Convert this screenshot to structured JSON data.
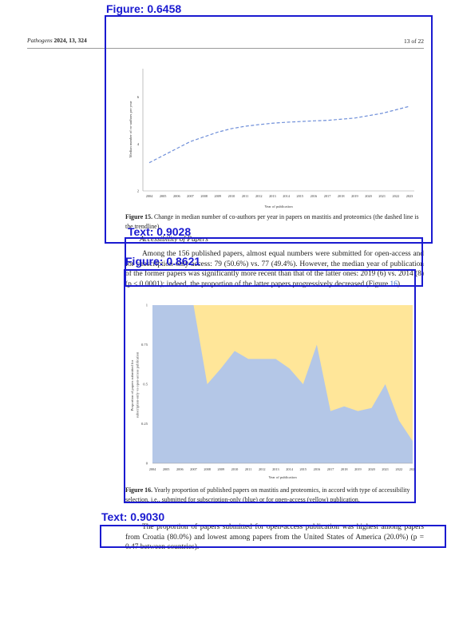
{
  "header": {
    "journal": "Pathogens",
    "citation": "2024, 13, 324",
    "page": "13 of 22"
  },
  "figure15": {
    "caption_label": "Figure 15.",
    "caption_text": "Change in median number of co-authors per year in papers on mastitis and proteomics (the dashed line is the trendline)."
  },
  "figure16": {
    "caption_label": "Figure 16.",
    "caption_text": "Yearly proportion of published papers on mastitis and proteomics, in accord with type of accessibility selection, i.e., submitted for subscription-only (blue) or for open-access (yellow) publication."
  },
  "section": {
    "heading": "Accessibility of Papers"
  },
  "paragraph1": {
    "text": "Among the 156 published papers, almost equal numbers were submitted for open-access and for subscription-only access: 79 (50.6%) vs. 77 (49.4%). However, the median year of publication of the former papers was significantly more recent than that of the latter ones: 2019 (6) vs. 2014 (8) (p < 0.0001); indeed, the proportion of the latter papers progressively decreased (Figure ",
    "ref": "16",
    "tail": ")."
  },
  "paragraph2": {
    "text": "The proportion of papers submitted for open-access publication was highest among papers from Croatia (80.0%) and lowest among papers from the United States of America (20.0%) (p = 0.47 between countries)."
  },
  "detections": [
    {
      "label": "Figure: 0.6458"
    },
    {
      "label": "Text: 0.9028"
    },
    {
      "label": "Figure: 0.8621"
    },
    {
      "label": "Text: 0.9030"
    }
  ],
  "chart_data": [
    {
      "type": "line",
      "title": "",
      "xlabel": "Year of publication",
      "ylabel": "Median number of co-authors per year",
      "x": [
        "2004",
        "2005",
        "2006",
        "2007",
        "2008",
        "2009",
        "2010",
        "2011",
        "2012",
        "2013",
        "2014",
        "2015",
        "2016",
        "2017",
        "2018",
        "2019",
        "2020",
        "2021",
        "2022",
        "2023"
      ],
      "yticks": [
        "2",
        "4",
        "6"
      ],
      "ylim": [
        2,
        7.2
      ],
      "series": [
        {
          "values": [
            3.2,
            3.5,
            3.8,
            4.1,
            4.3,
            4.5,
            4.65,
            4.75,
            4.82,
            4.88,
            4.92,
            4.95,
            4.98,
            5.0,
            5.05,
            5.1,
            5.2,
            5.3,
            5.45,
            5.6
          ]
        }
      ],
      "line_style": "dashed",
      "color": "#6f8fd9",
      "grid": false
    },
    {
      "type": "area",
      "title": "",
      "xlabel": "Year of publication",
      "ylabel": "Proportion of papers submitted for subscription-only vs open-access publication",
      "x": [
        "2004",
        "2005",
        "2006",
        "2007",
        "2008",
        "2009",
        "2010",
        "2011",
        "2012",
        "2013",
        "2014",
        "2015",
        "2016",
        "2017",
        "2018",
        "2019",
        "2020",
        "2021",
        "2022",
        "2023"
      ],
      "yticks": [
        "0",
        "0.25",
        "0.5",
        "0.75",
        "1"
      ],
      "ylim": [
        0,
        1
      ],
      "series": [
        {
          "values": [
            1,
            1,
            1,
            1,
            0.5,
            0.6,
            0.71,
            0.66,
            0.66,
            0.66,
            0.6,
            0.5,
            0.75,
            0.33,
            0.36,
            0.33,
            0.35,
            0.5,
            0.27,
            0.14
          ],
          "color": "#b4c7e7"
        },
        {
          "values_complement": true,
          "color": "#ffe699"
        }
      ],
      "stacked": true,
      "grid": false
    }
  ]
}
